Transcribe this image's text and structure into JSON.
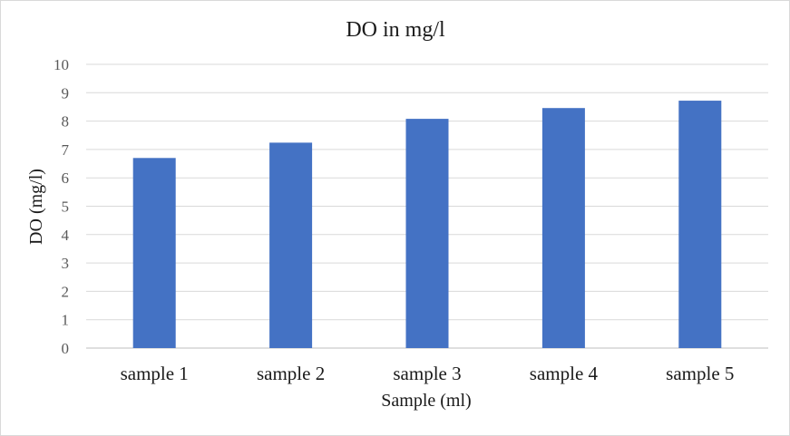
{
  "chart_data": {
    "type": "bar",
    "title": "DO in mg/l",
    "xlabel": "Sample (ml)",
    "ylabel": "DO (mg/l)",
    "categories": [
      "sample 1",
      "sample 2",
      "sample 3",
      "sample 4",
      "sample 5"
    ],
    "values": [
      6.7,
      7.24,
      8.08,
      8.46,
      8.72
    ],
    "ylim": [
      0,
      10
    ],
    "yticks": [
      0,
      1,
      2,
      3,
      4,
      5,
      6,
      7,
      8,
      9,
      10
    ],
    "grid": true,
    "legend": "none",
    "bar_color": "#4472c4"
  }
}
